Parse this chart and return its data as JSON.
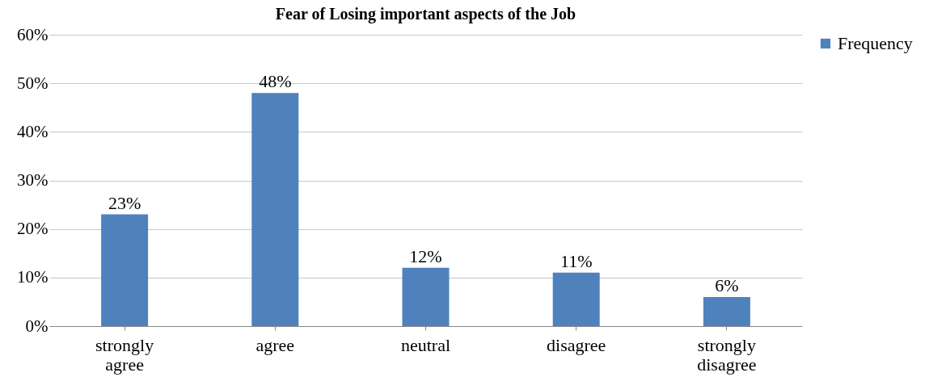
{
  "chart_data": {
    "type": "bar",
    "title": "Fear of Losing important aspects of the Job",
    "categories": [
      "strongly agree",
      "agree",
      "neutral",
      "disagree",
      "strongly disagree"
    ],
    "series": [
      {
        "name": "Frequency",
        "color": "#4f81bd",
        "values": [
          23,
          48,
          12,
          11,
          6
        ],
        "value_labels": [
          "23%",
          "48%",
          "12%",
          "11%",
          "6%"
        ]
      }
    ],
    "ylim": [
      0,
      60
    ],
    "yticks": [
      {
        "value": 0,
        "label": "0%"
      },
      {
        "value": 10,
        "label": "10%"
      },
      {
        "value": 20,
        "label": "20%"
      },
      {
        "value": 30,
        "label": "30%"
      },
      {
        "value": 40,
        "label": "40%"
      },
      {
        "value": 50,
        "label": "50%"
      },
      {
        "value": 60,
        "label": "60%"
      }
    ],
    "grid": "y",
    "legend": "right"
  }
}
